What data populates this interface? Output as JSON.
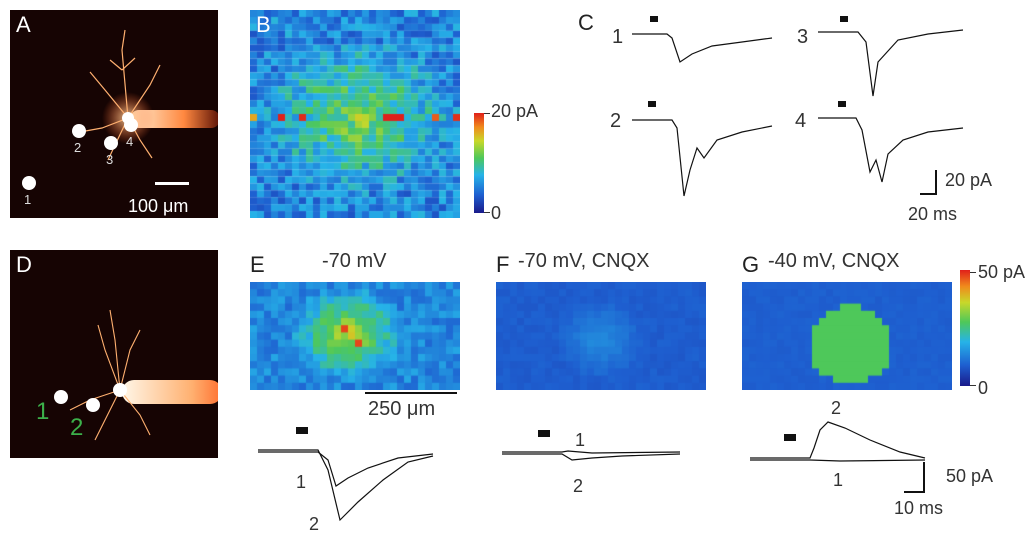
{
  "panels": {
    "A": {
      "label": "A",
      "sites": [
        "1",
        "2",
        "3",
        "4"
      ],
      "scalebar": "100 μm"
    },
    "B": {
      "label": "B",
      "colorbar_max": "20 pA",
      "colorbar_min": "0"
    },
    "C": {
      "label": "C",
      "traces": [
        "1",
        "2",
        "3",
        "4"
      ],
      "scale_y": "20 pA",
      "scale_x": "20 ms"
    },
    "D": {
      "label": "D",
      "sites": [
        "1",
        "2"
      ]
    },
    "E": {
      "label": "E",
      "condition": "-70 mV",
      "scalebar": "250 μm",
      "trace_labels": [
        "1",
        "2"
      ]
    },
    "F": {
      "label": "F",
      "condition": "-70 mV, CNQX",
      "trace_labels": [
        "1",
        "2"
      ]
    },
    "G": {
      "label": "G",
      "condition": "-40 mV, CNQX",
      "colorbar_max": "50 pA",
      "colorbar_min": "0",
      "trace_labels": [
        "2",
        "1"
      ],
      "scale_y": "50 pA",
      "scale_x": "10 ms"
    }
  },
  "colors": {
    "site_label_green": "#3cb04a",
    "map_background": "#1c3fb0"
  }
}
